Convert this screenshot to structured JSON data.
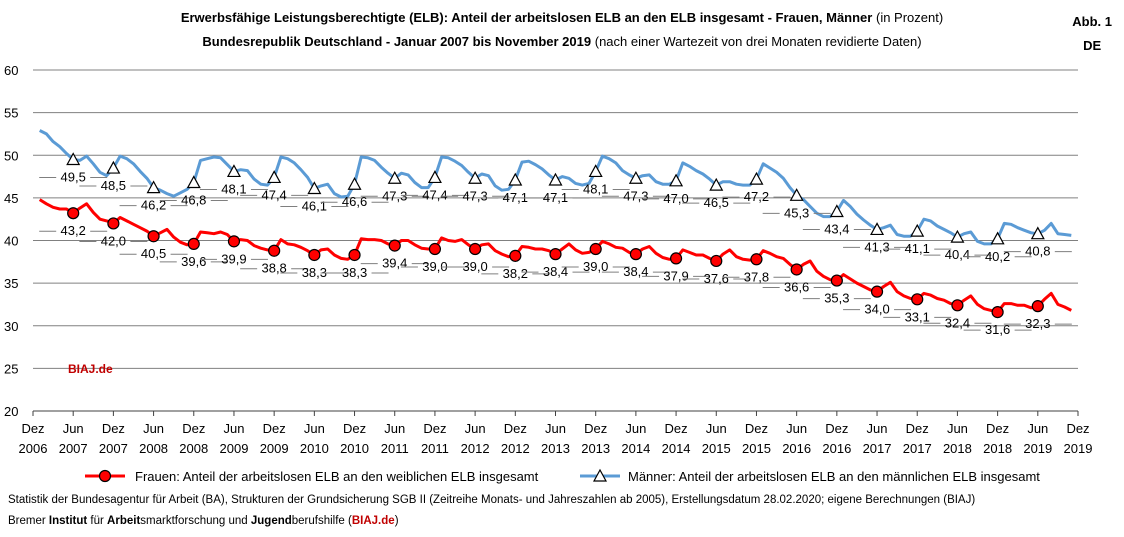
{
  "header": {
    "title_bold": "Erwerbsfähige Leistungsberechtigte (ELB): Anteil der arbeitslosen ELB an den ELB insgesamt - Frauen, Männer",
    "title_normal": "(in Prozent)",
    "subtitle_bold": "Bundesrepublik Deutschland - Januar 2007 bis November 2019",
    "subtitle_normal": "(nach einer Wartezeit von drei Monaten revidierte Daten)",
    "fig_label": "Abb. 1",
    "region": "DE"
  },
  "watermark": "BIAJ.de",
  "footer": {
    "source": "Statistik der Bundesagentur für Arbeit (BA), Strukturen der Grundsicherung SGB II (Zeitreihe Monats- und Jahreszahlen ab 2005), Erstellungsdatum 28.02.2020; eigene Berechnungen (BIAJ)",
    "inst_p1": "Bremer ",
    "inst_b1": "Institut",
    "inst_p2": " für ",
    "inst_b2": "Arbeit",
    "inst_p3": "smarktforschung und ",
    "inst_b3": "Jugend",
    "inst_p4": "berufshilfe (",
    "inst_link": "BIAJ.de",
    "inst_p5": ")"
  },
  "colors": {
    "frauen": "#ff0000",
    "maenner": "#5b9bd5",
    "grid": "#808080",
    "marker_fill": "#ff0000"
  },
  "chart_data": {
    "type": "line",
    "ylim": [
      20,
      60
    ],
    "yticks": [
      20,
      25,
      30,
      35,
      40,
      45,
      50,
      55,
      60
    ],
    "grid": "horizontal",
    "legend_position": "bottom",
    "x_ticks": [
      {
        "m": "Dez",
        "y": "2006"
      },
      {
        "m": "Jun",
        "y": "2007"
      },
      {
        "m": "Dez",
        "y": "2007"
      },
      {
        "m": "Jun",
        "y": "2008"
      },
      {
        "m": "Dez",
        "y": "2008"
      },
      {
        "m": "Jun",
        "y": "2009"
      },
      {
        "m": "Dez",
        "y": "2009"
      },
      {
        "m": "Jun",
        "y": "2010"
      },
      {
        "m": "Dez",
        "y": "2010"
      },
      {
        "m": "Jun",
        "y": "2011"
      },
      {
        "m": "Dez",
        "y": "2011"
      },
      {
        "m": "Jun",
        "y": "2012"
      },
      {
        "m": "Dez",
        "y": "2012"
      },
      {
        "m": "Jun",
        "y": "2013"
      },
      {
        "m": "Dez",
        "y": "2013"
      },
      {
        "m": "Jun",
        "y": "2014"
      },
      {
        "m": "Dez",
        "y": "2014"
      },
      {
        "m": "Jun",
        "y": "2015"
      },
      {
        "m": "Dez",
        "y": "2015"
      },
      {
        "m": "Jun",
        "y": "2016"
      },
      {
        "m": "Dez",
        "y": "2016"
      },
      {
        "m": "Jun",
        "y": "2017"
      },
      {
        "m": "Dez",
        "y": "2017"
      },
      {
        "m": "Jun",
        "y": "2018"
      },
      {
        "m": "Dez",
        "y": "2018"
      },
      {
        "m": "Jun",
        "y": "2019"
      },
      {
        "m": "Dez",
        "y": "2019"
      }
    ],
    "marker_dates": [
      "Jun 2007",
      "Dez 2007",
      "Jun 2008",
      "Dez 2008",
      "Jun 2009",
      "Dez 2009",
      "Jun 2010",
      "Dez 2010",
      "Jun 2011",
      "Dez 2011",
      "Jun 2012",
      "Dez 2012",
      "Jun 2013",
      "Dez 2013",
      "Jun 2014",
      "Dez 2014",
      "Jun 2015",
      "Dez 2015",
      "Jun 2016",
      "Dez 2016",
      "Jun 2017",
      "Dez 2017",
      "Jun 2018",
      "Dez 2018",
      "Jun 2019"
    ],
    "series": [
      {
        "name": "Frauen: Anteil der arbeitslosen ELB an den weiblichen ELB insgesamt",
        "key": "frauen",
        "marker": "circle",
        "start": "Jan 2007",
        "monthly": [
          44.8,
          44.3,
          43.9,
          43.7,
          43.7,
          43.2,
          43.8,
          44.3,
          43.3,
          42.5,
          42.3,
          42.0,
          42.7,
          42.3,
          41.9,
          41.5,
          41.1,
          40.5,
          40.9,
          41.3,
          40.4,
          39.8,
          39.5,
          39.6,
          41.0,
          40.9,
          40.8,
          41.0,
          40.7,
          39.9,
          40.1,
          40.0,
          39.4,
          39.1,
          38.9,
          38.8,
          40.1,
          39.6,
          39.5,
          39.2,
          38.8,
          38.3,
          38.9,
          39.0,
          38.3,
          37.9,
          37.8,
          38.3,
          40.2,
          40.1,
          40.1,
          40.0,
          39.6,
          39.4,
          40.0,
          40.0,
          39.5,
          39.1,
          39.0,
          39.0,
          40.3,
          40.0,
          39.9,
          40.1,
          39.5,
          39.0,
          39.5,
          39.6,
          38.8,
          38.4,
          38.1,
          38.2,
          39.3,
          39.2,
          39.0,
          39.0,
          38.8,
          38.4,
          39.0,
          39.6,
          38.9,
          38.5,
          38.6,
          39.0,
          39.9,
          39.6,
          39.2,
          39.1,
          38.6,
          38.4,
          39.0,
          39.3,
          38.5,
          38.0,
          37.8,
          37.9,
          38.9,
          38.6,
          38.3,
          38.3,
          37.9,
          37.6,
          38.4,
          38.9,
          38.1,
          37.8,
          37.7,
          37.8,
          38.8,
          38.5,
          38.1,
          37.9,
          37.2,
          36.6,
          37.2,
          37.6,
          36.4,
          35.8,
          35.4,
          35.3,
          36.0,
          35.5,
          35.0,
          34.6,
          34.2,
          34.0,
          34.6,
          35.1,
          34.0,
          33.5,
          33.2,
          33.1,
          33.8,
          33.6,
          33.2,
          33.0,
          32.6,
          32.4,
          33.0,
          33.5,
          32.5,
          32.0,
          31.8,
          31.6,
          32.6,
          32.6,
          32.4,
          32.4,
          32.1,
          32.3,
          33.1,
          33.8,
          32.5,
          32.2,
          31.8
        ]
      },
      {
        "name": "Männer: Anteil der arbeitslosen ELB an den männlichen ELB insgesamt",
        "key": "maenner",
        "marker": "triangle",
        "start": "Jan 2007",
        "monthly": [
          52.9,
          52.5,
          51.6,
          51.0,
          50.2,
          49.5,
          49.4,
          49.9,
          49.0,
          48.0,
          47.6,
          48.5,
          49.9,
          49.6,
          49.0,
          48.1,
          47.3,
          46.2,
          45.9,
          45.5,
          45.2,
          45.6,
          46.0,
          46.8,
          49.4,
          49.6,
          49.8,
          49.7,
          48.9,
          48.1,
          48.3,
          48.2,
          47.2,
          46.6,
          46.5,
          47.4,
          49.8,
          49.6,
          49.1,
          48.3,
          47.4,
          46.1,
          46.4,
          46.6,
          45.5,
          45.1,
          45.2,
          46.6,
          49.8,
          49.7,
          49.4,
          48.6,
          47.9,
          47.3,
          47.9,
          47.7,
          46.8,
          46.2,
          46.2,
          47.4,
          49.8,
          49.7,
          49.3,
          48.8,
          48.0,
          47.3,
          47.8,
          47.6,
          46.4,
          45.9,
          46.0,
          47.1,
          49.2,
          49.3,
          48.9,
          48.4,
          47.7,
          47.1,
          47.5,
          47.3,
          46.7,
          46.5,
          46.7,
          48.1,
          49.9,
          49.6,
          49.1,
          48.2,
          47.7,
          47.3,
          47.6,
          47.7,
          46.9,
          46.6,
          46.6,
          47.0,
          49.1,
          48.7,
          48.2,
          47.8,
          47.2,
          46.5,
          46.9,
          46.9,
          46.6,
          46.5,
          46.5,
          47.2,
          49.0,
          48.5,
          48.0,
          47.3,
          46.2,
          45.3,
          44.8,
          44.0,
          43.2,
          42.8,
          42.8,
          43.4,
          44.7,
          44.0,
          43.1,
          42.4,
          41.8,
          41.3,
          41.5,
          41.8,
          40.7,
          40.5,
          40.5,
          41.1,
          42.5,
          42.3,
          41.7,
          41.3,
          40.9,
          40.4,
          40.8,
          41.0,
          39.9,
          39.6,
          39.6,
          40.2,
          42.0,
          41.9,
          41.5,
          41.2,
          40.9,
          40.8,
          41.2,
          42.0,
          40.8,
          40.7,
          40.6
        ]
      }
    ],
    "point_labels": {
      "frauen": [
        "43,2",
        "42,0",
        "40,5",
        "39,6",
        "39,9",
        "38,8",
        "38,3",
        "38,3",
        "39,4",
        "39,0",
        "39,0",
        "38,2",
        "38,4",
        "39,0",
        "38,4",
        "37,9",
        "37,6",
        "37,8",
        "36,6",
        "35,3",
        "34,0",
        "33,1",
        "32,4",
        "31,6",
        "32,3"
      ],
      "maenner": [
        "49,5",
        "48,5",
        "46,2",
        "46,8",
        "48,1",
        "47,4",
        "46,1",
        "46,6",
        "47,3",
        "47,4",
        "47,3",
        "47,1",
        "47,1",
        "48,1",
        "47,3",
        "47,0",
        "46,5",
        "47,2",
        "45,3",
        "43,4",
        "41,3",
        "41,1",
        "40,4",
        "40,2",
        "40,8"
      ]
    }
  }
}
